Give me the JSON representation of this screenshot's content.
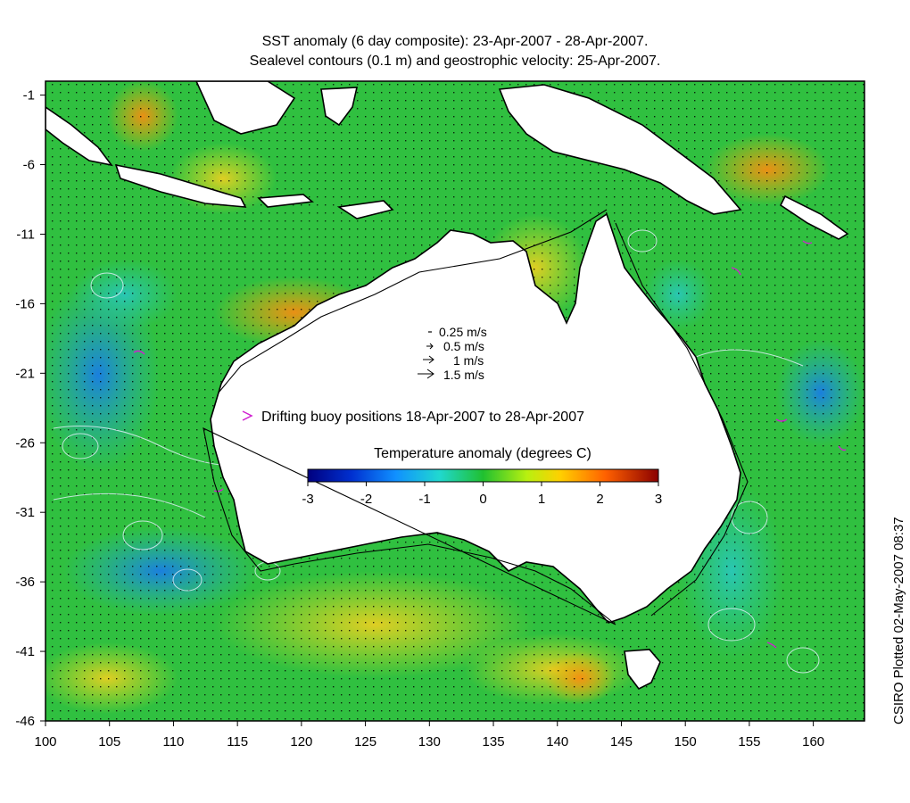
{
  "title_lines": [
    "SST anomaly (6 day composite): 23-Apr-2007 - 28-Apr-2007.",
    "Sealevel contours (0.1 m) and geostrophic velocity: 25-Apr-2007."
  ],
  "credit": "CSIRO Plotted 02-May-2007 08:37",
  "map": {
    "lon_range": [
      100,
      164
    ],
    "lat_range": [
      -46,
      0
    ],
    "x_ticks": [
      "100",
      "105",
      "110",
      "115",
      "120",
      "125",
      "130",
      "135",
      "140",
      "145",
      "150",
      "155",
      "160"
    ],
    "y_ticks": [
      "-1",
      "-6",
      "-11",
      "-16",
      "-21",
      "-26",
      "-31",
      "-36",
      "-41",
      "-46"
    ]
  },
  "velocity_legend": [
    "0.25 m/s",
    "0.5 m/s",
    "1 m/s",
    "1.5 m/s"
  ],
  "buoy_legend": "Drifting buoy positions 18-Apr-2007 to 28-Apr-2007",
  "colorbar": {
    "title": "Temperature anomaly (degrees C)",
    "ticks": [
      "-3",
      "-2",
      "-1",
      "0",
      "1",
      "2",
      "3"
    ],
    "range": [
      -3,
      3
    ]
  },
  "colors": {
    "land": "#ffffff",
    "coast": "#000000",
    "contour": "#e8f0ff",
    "buoy": "#d020d0",
    "ocean_base": "#2fbf3a"
  }
}
